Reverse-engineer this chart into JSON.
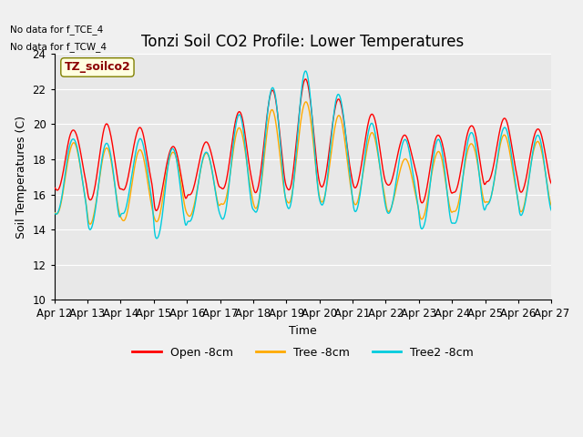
{
  "title": "Tonzi Soil CO2 Profile: Lower Temperatures",
  "xlabel": "Time",
  "ylabel": "Soil Temperatures (C)",
  "ylim": [
    10,
    24
  ],
  "yticks": [
    10,
    12,
    14,
    16,
    18,
    20,
    22,
    24
  ],
  "fig_bg_color": "#f0f0f0",
  "plot_bg_color": "#e8e8e8",
  "no_data_text": [
    "No data for f_TCE_4",
    "No data for f_TCW_4"
  ],
  "legend_label": "TZ_soilco2",
  "legend_entries": [
    "Open -8cm",
    "Tree -8cm",
    "Tree2 -8cm"
  ],
  "legend_colors": [
    "#ff0000",
    "#ffaa00",
    "#00ccdd"
  ],
  "line_colors": [
    "#ff0000",
    "#ffaa00",
    "#00ccdd"
  ],
  "xtick_labels": [
    "Apr 12",
    "Apr 13",
    "Apr 14",
    "Apr 15",
    "Apr 16",
    "Apr 17",
    "Apr 18",
    "Apr 19",
    "Apr 20",
    "Apr 21",
    "Apr 22",
    "Apr 23",
    "Apr 24",
    "Apr 25",
    "Apr 26",
    "Apr 27"
  ],
  "title_fontsize": 12,
  "axis_fontsize": 9,
  "tick_fontsize": 8.5,
  "linewidth": 1.0
}
